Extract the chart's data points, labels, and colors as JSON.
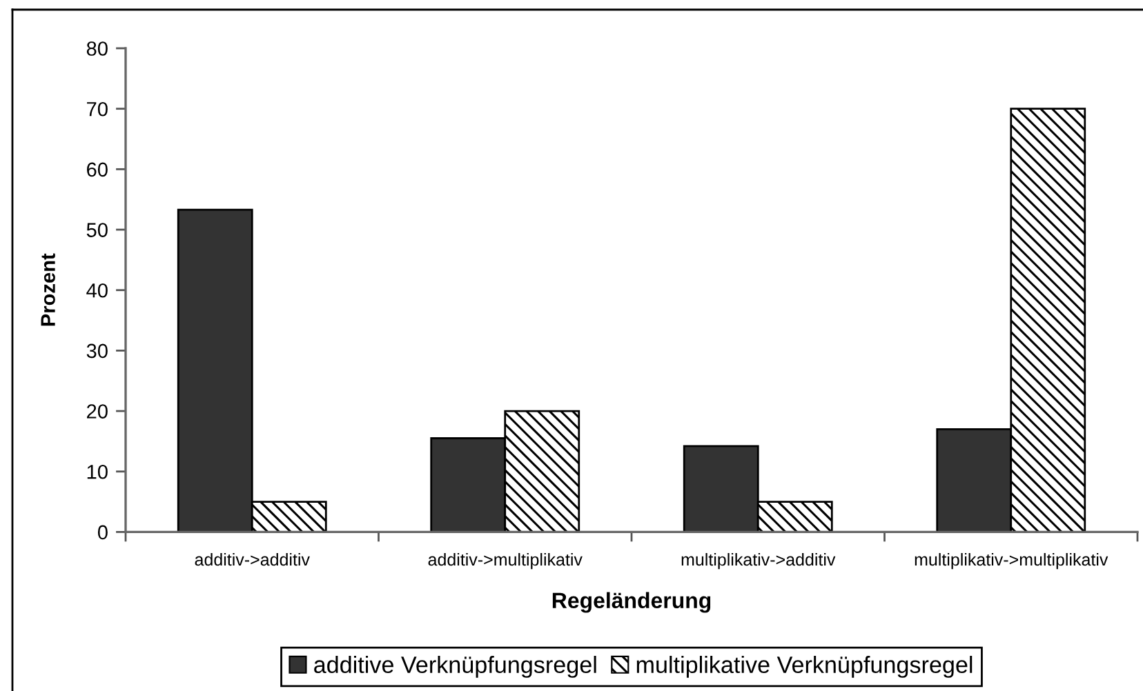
{
  "chart_data": {
    "type": "bar",
    "xlabel": "Regeländerung",
    "ylabel": "Prozent",
    "categories": [
      "additiv->additiv",
      "additiv->multiplikativ",
      "multiplikativ->additiv",
      "multiplikativ->multiplikativ"
    ],
    "series": [
      {
        "name": "additive Verknüpfungsregel",
        "color": "#333333",
        "values": [
          53.3,
          15.5,
          14.2,
          17.0
        ]
      },
      {
        "name": "multiplikative Verknüpfungsregel",
        "color": "#000000",
        "values": [
          5.0,
          20.0,
          5.0,
          70.0
        ]
      }
    ],
    "ylim": [
      0,
      80
    ],
    "yticks": [
      0,
      10,
      20,
      30,
      40,
      50,
      60,
      70,
      80
    ],
    "legend": "bottom"
  }
}
